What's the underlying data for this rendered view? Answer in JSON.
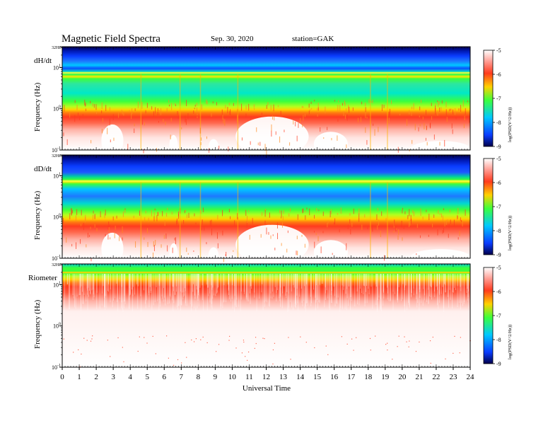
{
  "header": {
    "title": "Magnetic  Field  Spectra",
    "date": "Sep. 30, 2020",
    "station": "station=GAK"
  },
  "chart_data": {
    "type": "heatmap",
    "xlabel": "Universal Time",
    "x_ticks": [
      "0",
      "1",
      "2",
      "3",
      "4",
      "5",
      "6",
      "7",
      "8",
      "9",
      "10",
      "11",
      "12",
      "13",
      "14",
      "15",
      "16",
      "17",
      "18",
      "19",
      "20",
      "21",
      "22",
      "23",
      "24"
    ],
    "xlim": [
      0,
      24
    ],
    "colorbar": {
      "label": "log(PSD(V^2/Hz))",
      "ticks": [
        "-5",
        "-6",
        "-7",
        "-8",
        "-9"
      ],
      "range": [
        -9,
        -5
      ],
      "colormap": [
        "#ffffff",
        "#ff3b1e",
        "#ffd200",
        "#3cff3c",
        "#00c8ff",
        "#0a3cff",
        "#00004a"
      ]
    },
    "panels": [
      {
        "name": "dH/dt",
        "ylabel": "Frequency  (Hz)",
        "y_ticks": [
          "32Hz",
          "10^1",
          "10^0",
          "10^-1"
        ],
        "y_scale": "log",
        "ylim": [
          0.1,
          32
        ],
        "green_line_hz": 7.5
      },
      {
        "name": "dD/dt",
        "ylabel": "Frequency  (Hz)",
        "y_ticks": [
          "32Hz",
          "10^1",
          "10^0",
          "10^-1"
        ],
        "y_scale": "log",
        "ylim": [
          0.1,
          32
        ],
        "green_line_hz": 7.5
      },
      {
        "name": "Riometer",
        "ylabel": "Frequency  (Hz)",
        "y_ticks": [
          "32Hz",
          "10^1",
          "10^0",
          "10^-1"
        ],
        "y_scale": "log",
        "ylim": [
          0.1,
          32
        ],
        "green_line_hz": 20
      }
    ]
  }
}
